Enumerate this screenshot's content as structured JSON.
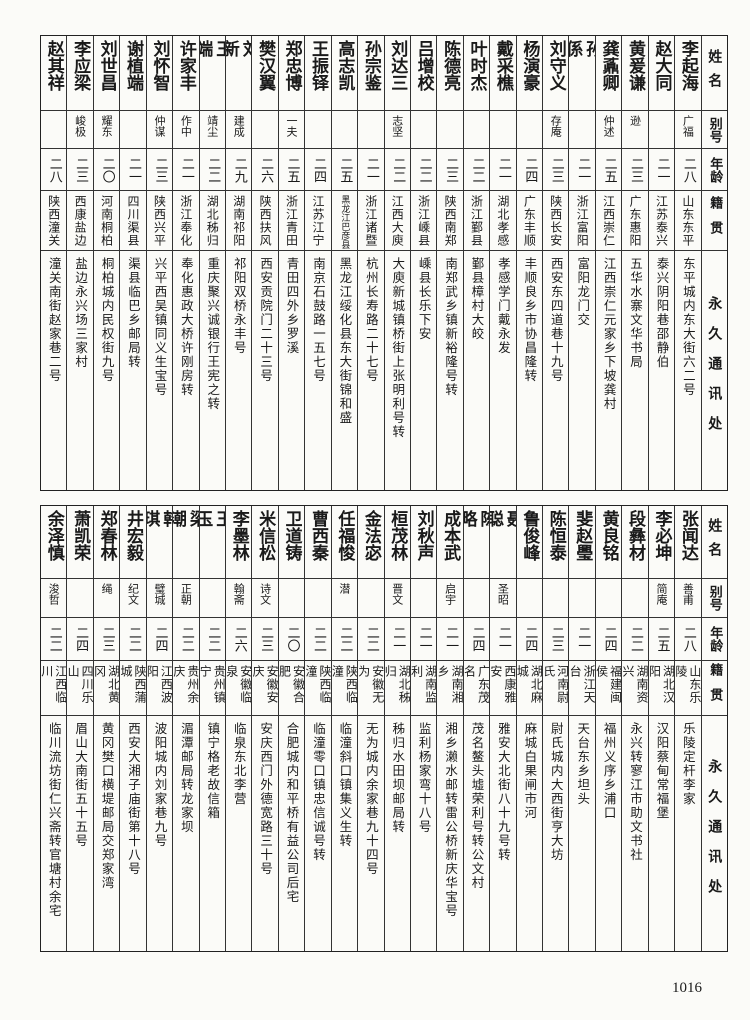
{
  "headers": {
    "name": "姓名",
    "alias": "别号",
    "age": "年龄",
    "native": "籍贯",
    "address": "永久通讯处"
  },
  "top_table": [
    {
      "name": "李起海",
      "alias": "广福",
      "age": "二八",
      "native": "山东东平",
      "address": "东平城内东大街六二号"
    },
    {
      "name": "赵大同",
      "alias": "",
      "age": "二一",
      "native": "江苏泰兴",
      "address": "泰兴阴阳巷邵静伯"
    },
    {
      "name": "黄爰谦",
      "alias": "逊",
      "age": "二三",
      "native": "广东惠阳",
      "address": "五华水寨文华书局"
    },
    {
      "name": "龚鼒卿",
      "alias": "仲述",
      "age": "二五",
      "native": "江西崇仁",
      "address": "江西崇仁元家乡下坡龚村"
    },
    {
      "name": "孙係",
      "alias": "",
      "age": "二一",
      "native": "浙江富阳",
      "address": "富阳龙门交"
    },
    {
      "name": "刘守义",
      "alias": "存庵",
      "age": "二三",
      "native": "陕西长安",
      "address": "西安东四道巷十九号"
    },
    {
      "name": "杨演豪",
      "alias": "",
      "age": "二四",
      "native": "广东丰顺",
      "address": "丰顺良乡市协昌隆转"
    },
    {
      "name": "戴采樵",
      "alias": "",
      "age": "二一",
      "native": "湖北孝感",
      "address": "孝感学门戴永发"
    },
    {
      "name": "叶时杰",
      "alias": "",
      "age": "二二",
      "native": "浙江鄞县",
      "address": "鄞县樟村大皎"
    },
    {
      "name": "陈德亮",
      "alias": "",
      "age": "二三",
      "native": "陕西南郑",
      "address": "南郑武乡镇新裕隆号转"
    },
    {
      "name": "吕增校",
      "alias": "",
      "age": "二二",
      "native": "浙江嵊县",
      "address": "嵊县长乐下安"
    },
    {
      "name": "刘达三",
      "alias": "志坚",
      "age": "二二",
      "native": "江西大庾",
      "address": "大庾新城镇桥街上张明利号转"
    },
    {
      "name": "孙宗鉴",
      "alias": "",
      "age": "二一",
      "native": "浙江诸暨",
      "address": "杭州长寿路二十七号"
    },
    {
      "name": "高志凯",
      "alias": "",
      "age": "二五",
      "native": "黑龙江巴彦县",
      "address": "黑龙江绥化县东大街锦和盛"
    },
    {
      "name": "王振铎",
      "alias": "",
      "age": "二四",
      "native": "江苏江宁",
      "address": "南京石鼓路一五七号"
    },
    {
      "name": "郑忠博",
      "alias": "一夫",
      "age": "二五",
      "native": "浙江青田",
      "address": "青田四外乡罗溪"
    },
    {
      "name": "樊汉翼",
      "alias": "",
      "age": "二六",
      "native": "陕西扶风",
      "address": "西安贡院门二十三号"
    },
    {
      "name": "刘新",
      "alias": "建成",
      "age": "二九",
      "native": "湖南祁阳",
      "address": "祁阳双桥永丰号"
    },
    {
      "name": "王端",
      "alias": "靖尘",
      "age": "二二",
      "native": "湖北秭归",
      "address": "重庆聚兴诚银行王宪之转"
    },
    {
      "name": "许家丰",
      "alias": "作中",
      "age": "二一",
      "native": "浙江奉化",
      "address": "奉化惠政大桥许刚房转"
    },
    {
      "name": "刘怀智",
      "alias": "仲谋",
      "age": "二三",
      "native": "陕西兴平",
      "address": "兴平西吴镇同义生宝号"
    },
    {
      "name": "谢植端",
      "alias": "",
      "age": "二一",
      "native": "四川渠县",
      "address": "渠县临巴乡邮局转"
    },
    {
      "name": "刘世昌",
      "alias": "耀东",
      "age": "二〇",
      "native": "河南桐柏",
      "address": "桐柏城内民权街九号"
    },
    {
      "name": "李应梁",
      "alias": "峻极",
      "age": "二三",
      "native": "西康盐边",
      "address": "盐边永兴场三家村"
    },
    {
      "name": "赵其祥",
      "alias": "",
      "age": "二八",
      "native": "陕西潼关",
      "address": "潼关南街赵家巷二号"
    }
  ],
  "bottom_table": [
    {
      "name": "张闻达",
      "alias": "善甫",
      "age": "二八",
      "native": "山东乐陵",
      "address": "乐陵定杆李家"
    },
    {
      "name": "李必坤",
      "alias": "简庵",
      "age": "二五",
      "native": "湖北汉阳",
      "address": "汉阳蔡甸常福堡"
    },
    {
      "name": "段彝材",
      "alias": "",
      "age": "二二",
      "native": "湖南资兴",
      "address": "永兴转寥江市助文书社"
    },
    {
      "name": "黄良铭",
      "alias": "",
      "age": "二四",
      "native": "福建闽侯",
      "address": "福州义序乡浦口"
    },
    {
      "name": "斐赵璺",
      "alias": "",
      "age": "二一",
      "native": "浙江天台",
      "address": "天台东乡坦头"
    },
    {
      "name": "陈恒泰",
      "alias": "",
      "age": "二三",
      "native": "河南尉氏",
      "address": "尉氏城内大西街亨大坊"
    },
    {
      "name": "鲁俊峰",
      "alias": "",
      "age": "二四",
      "native": "湖北麻城",
      "address": "麻城白果闸市河"
    },
    {
      "name": "聂聪",
      "alias": "圣昭",
      "age": "二一",
      "native": "西康雅安",
      "address": "雅安大北街八十九号转"
    },
    {
      "name": "陈略",
      "alias": "",
      "age": "二四",
      "native": "广东茂名",
      "address": "茂名鳌头墟荣利号转公文村"
    },
    {
      "name": "成本武",
      "alias": "启宇",
      "age": "二一",
      "native": "湖南湘乡",
      "address": "湘乡濑水邮转雷公桥新庆华宝号"
    },
    {
      "name": "刘秋声",
      "alias": "",
      "age": "二一",
      "native": "湖南监利",
      "address": "监利杨家弯十八号"
    },
    {
      "name": "桓茂林",
      "alias": "晋文",
      "age": "二一",
      "native": "湖北秭归",
      "address": "秭归水田坝邮局转"
    },
    {
      "name": "金法宓",
      "alias": "",
      "age": "二二",
      "native": "安徽无为",
      "address": "无为城内余家巷九十四号"
    },
    {
      "name": "任福悛",
      "alias": "潜",
      "age": "二二",
      "native": "陕西临潼",
      "address": "临潼斜口镇集义生转"
    },
    {
      "name": "曹西秦",
      "alias": "",
      "age": "二二",
      "native": "陕西临潼",
      "address": "临潼零口镇忠信诚号转"
    },
    {
      "name": "卫道铸",
      "alias": "",
      "age": "二〇",
      "native": "安徽合肥",
      "address": "合肥城内和平桥有益公司后宅"
    },
    {
      "name": "米信松",
      "alias": "诗文",
      "age": "二三",
      "native": "安徽安庆",
      "address": "安庆西门外德宽路三十号"
    },
    {
      "name": "李墨林",
      "alias": "翰斋",
      "age": "二六",
      "native": "安徽临泉",
      "address": "临泉东北李营"
    },
    {
      "name": "王玉",
      "alias": "",
      "age": "二二",
      "native": "贵州镇宁",
      "address": "镇宁格老故信箱"
    },
    {
      "name": "梁潮",
      "alias": "正朝",
      "age": "二二",
      "native": "贵州余庆",
      "address": "湄潭邮局转龙家坝"
    },
    {
      "name": "韩琪",
      "alias": "璧城",
      "age": "二四",
      "native": "江西波阳",
      "address": "波阳城内刘家巷九号"
    },
    {
      "name": "井宏毅",
      "alias": "纪文",
      "age": "二二",
      "native": "陕西蒲城",
      "address": "西安大湘子庙街第十八号"
    },
    {
      "name": "郑春林",
      "alias": "绳",
      "age": "二三",
      "native": "湖北黄冈",
      "address": "黄冈樊口横堤邮局交郑家湾"
    },
    {
      "name": "萧凯荣",
      "alias": "",
      "age": "二四",
      "native": "四川乐山",
      "address": "眉山大南街五十五号"
    },
    {
      "name": "余泽慎",
      "alias": "浚哲",
      "age": "二二",
      "native": "江西临川",
      "address": "临川流坊街仁兴斋转官塘村余宅"
    }
  ],
  "page_number": "1016"
}
